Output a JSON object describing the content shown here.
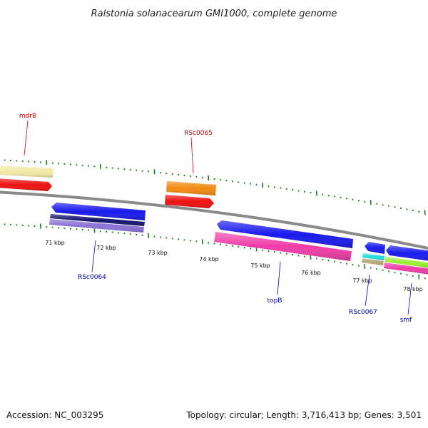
{
  "title": "Ralstonia solanacearum GMI1000, complete genome",
  "footer": {
    "accession": "Accession: NC_003295",
    "summary": "Topology: circular; Length: 3,716,413 bp; Genes: 3,501"
  },
  "colors": {
    "backbone": "#8a8a8a",
    "tick": "#1e7a1e",
    "label_top": "#cc0000",
    "label_bottom": "#0000aa"
  },
  "scale": {
    "unit": "kbp",
    "tick_labels": [
      "71 kbp",
      "72 kbp",
      "73 kbp",
      "74 kbp",
      "75 kbp",
      "76 kbp",
      "77 kbp",
      "78 kbp"
    ]
  },
  "gene_labels_top": [
    "mdrB",
    "RSc0065"
  ],
  "gene_labels_bottom": [
    "RSc0064",
    "topB",
    "RSc0067",
    "smf"
  ],
  "features": [
    {
      "name": "mdrB-feature",
      "color": "#f3e9a6"
    },
    {
      "name": "mdrB-gene",
      "color": "#ee1111"
    },
    {
      "name": "RSc0065-feature",
      "color": "#f28a12"
    },
    {
      "name": "RSc0065-gene",
      "color": "#ee1111"
    },
    {
      "name": "RSc0064-gene",
      "color": "#1a1aee"
    },
    {
      "name": "RSc0064-cds",
      "color": "#14146e"
    },
    {
      "name": "RSc0064-feature",
      "color": "#8a72d8"
    },
    {
      "name": "topB-gene",
      "color": "#1a1aee"
    },
    {
      "name": "topB-feature",
      "color": "#f03ca8"
    },
    {
      "name": "RSc0067-gene",
      "color": "#1a1aee"
    },
    {
      "name": "RSc0067-feature-a",
      "color": "#22dddd"
    },
    {
      "name": "RSc0067-feature-b",
      "color": "#b8aa78"
    },
    {
      "name": "smf-gene",
      "color": "#1a1aee"
    },
    {
      "name": "smf-feature-a",
      "color": "#99ee33"
    },
    {
      "name": "smf-feature-b",
      "color": "#f03ca8"
    }
  ]
}
